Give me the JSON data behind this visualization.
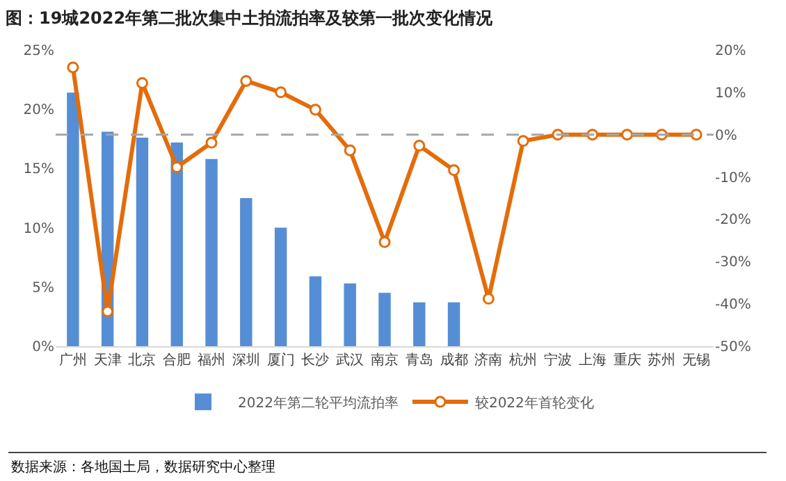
{
  "chart_data": {
    "type": "bar",
    "title": "图：19城2022年第二批次集中土拍流拍率及较第一批次变化情况",
    "categories": [
      "广州",
      "天津",
      "北京",
      "合肥",
      "福州",
      "深圳",
      "厦门",
      "长沙",
      "武汉",
      "南京",
      "青岛",
      "成都",
      "济南",
      "杭州",
      "宁波",
      "上海",
      "重庆",
      "苏州",
      "无锡"
    ],
    "series": [
      {
        "name": "2022年第二轮平均流拍率",
        "color": "#558ed5",
        "values": [
          21.4,
          18.1,
          17.6,
          17.2,
          15.8,
          12.5,
          10.0,
          5.9,
          5.3,
          4.5,
          3.7,
          3.7,
          null,
          null,
          null,
          null,
          null,
          null,
          null
        ]
      },
      {
        "name": "较2022年首轮变化",
        "type": "line",
        "axis": "y2",
        "color": "#e46c0a",
        "marker": "circle",
        "line_style": "solid",
        "values": [
          15.9,
          -41.8,
          12.2,
          -7.7,
          -1.9,
          12.7,
          10.0,
          5.9,
          -3.7,
          -25.4,
          -2.6,
          -8.4,
          -38.8,
          -1.5,
          0,
          0,
          0,
          0,
          0
        ]
      }
    ],
    "ylim": [
      0,
      25
    ],
    "yticks": [
      {
        "value": 0,
        "label": "0%"
      },
      {
        "value": 5,
        "label": "5%"
      },
      {
        "value": 10,
        "label": "10%"
      },
      {
        "value": 15,
        "label": "15%"
      },
      {
        "value": 20,
        "label": "20%"
      },
      {
        "value": 25,
        "label": "25%"
      }
    ],
    "y2lim": [
      -50,
      20
    ],
    "y2ticks": [
      {
        "value": -50,
        "label": "-50%"
      },
      {
        "value": -40,
        "label": "-40%"
      },
      {
        "value": -30,
        "label": "-30%"
      },
      {
        "value": -20,
        "label": "-20%"
      },
      {
        "value": -10,
        "label": "-10%"
      },
      {
        "value": 0,
        "label": "0%"
      },
      {
        "value": 10,
        "label": "10%"
      },
      {
        "value": 20,
        "label": "20%"
      }
    ],
    "ref_lines": [
      {
        "axis": "y2",
        "value": 0,
        "color": "#a6a6a6",
        "line_style": "dashed"
      }
    ],
    "grid": false,
    "legend": "bottom",
    "annotations": [
      "数据来源：各地国土局，数据研究中心整理"
    ]
  }
}
